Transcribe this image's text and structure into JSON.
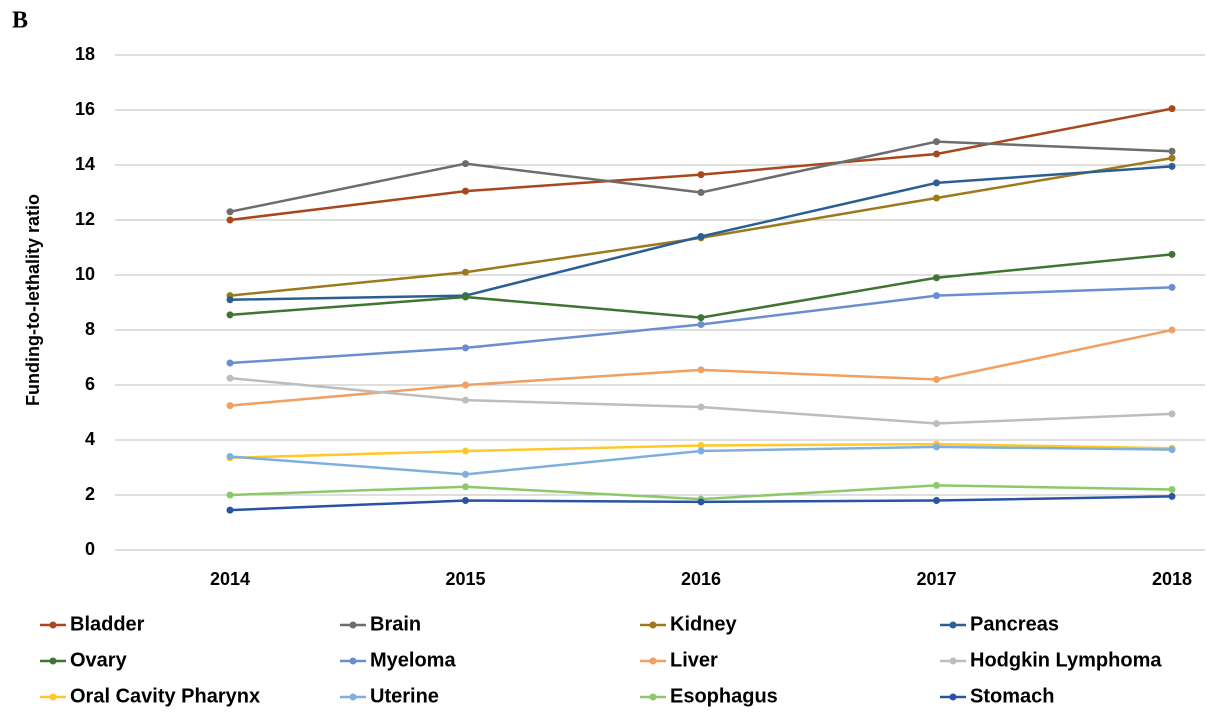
{
  "panel_label": "B",
  "chart_data": {
    "type": "line",
    "ylabel": "Funding-to-lethality ratio",
    "categories": [
      "2014",
      "2015",
      "2016",
      "2017",
      "2018"
    ],
    "ylim": [
      0,
      18
    ],
    "yticks": [
      0,
      2,
      4,
      6,
      8,
      10,
      12,
      14,
      16,
      18
    ],
    "grid": true,
    "legend": "bottom",
    "series": [
      {
        "name": "Bladder",
        "color": "#a9471f",
        "values": [
          12.0,
          13.05,
          13.65,
          14.4,
          16.05
        ]
      },
      {
        "name": "Brain",
        "color": "#6d6d6d",
        "values": [
          12.3,
          14.05,
          13.0,
          14.85,
          14.5
        ]
      },
      {
        "name": "Kidney",
        "color": "#9c7a1c",
        "values": [
          9.25,
          10.1,
          11.35,
          12.8,
          14.25
        ]
      },
      {
        "name": "Pancreas",
        "color": "#2b5f93",
        "values": [
          9.1,
          9.25,
          11.4,
          13.35,
          13.95
        ]
      },
      {
        "name": "Ovary",
        "color": "#3f7432",
        "values": [
          8.55,
          9.2,
          8.45,
          9.9,
          10.75
        ]
      },
      {
        "name": "Myeloma",
        "color": "#6a8fd0",
        "values": [
          6.8,
          7.35,
          8.2,
          9.25,
          9.55
        ]
      },
      {
        "name": "Liver",
        "color": "#f0a062",
        "values": [
          5.25,
          6.0,
          6.55,
          6.2,
          8.0
        ]
      },
      {
        "name": "Hodgkin Lymphoma",
        "color": "#bdbdbd",
        "values": [
          6.25,
          5.45,
          5.2,
          4.6,
          4.95
        ]
      },
      {
        "name": "Oral Cavity Pharynx",
        "color": "#ffc929",
        "values": [
          3.35,
          3.6,
          3.8,
          3.85,
          3.7
        ]
      },
      {
        "name": "Uterine",
        "color": "#7fb0dd",
        "values": [
          3.4,
          2.75,
          3.6,
          3.75,
          3.65
        ]
      },
      {
        "name": "Esophagus",
        "color": "#8dc96a",
        "values": [
          2.0,
          2.3,
          1.85,
          2.35,
          2.2
        ]
      },
      {
        "name": "Stomach",
        "color": "#2a53a2",
        "values": [
          1.45,
          1.8,
          1.75,
          1.8,
          1.95
        ]
      }
    ]
  }
}
